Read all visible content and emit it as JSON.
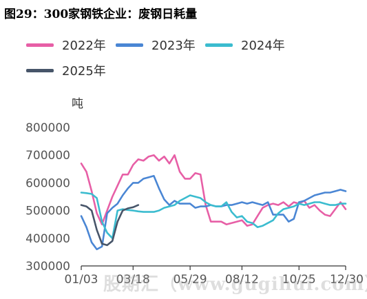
{
  "title": "图29：300家钢铁企业：废钢日耗量",
  "watermark": "股期汇（www.gugihui.com）",
  "chart_data": {
    "type": "line",
    "ylabel": "吨",
    "ylim": [
      300000,
      800000
    ],
    "yticks": [
      300000,
      400000,
      500000,
      600000,
      700000,
      800000
    ],
    "ytick_labels": [
      "300000",
      "400000",
      "500000",
      "600000",
      "700000",
      "800000"
    ],
    "xlim": [
      0,
      51
    ],
    "xticks": [
      0,
      10,
      21,
      31,
      42,
      51
    ],
    "xtick_labels": [
      "01/03",
      "03/18",
      "05/29",
      "08/12",
      "10/25",
      "12/30"
    ],
    "grid": false,
    "legend_position": "top-left",
    "series": [
      {
        "name": "2022年",
        "color": "#e75fa6",
        "x": [
          0,
          1,
          2,
          3,
          4,
          5,
          6,
          7,
          8,
          9,
          10,
          11,
          12,
          13,
          14,
          15,
          16,
          17,
          18,
          19,
          20,
          21,
          22,
          23,
          24,
          25,
          26,
          27,
          28,
          29,
          30,
          31,
          32,
          33,
          34,
          35,
          36,
          37,
          38,
          39,
          40,
          41,
          42,
          43,
          44,
          45,
          46,
          47,
          48,
          49,
          50,
          51
        ],
        "values": [
          670000,
          640000,
          570000,
          490000,
          450000,
          500000,
          550000,
          590000,
          630000,
          630000,
          665000,
          685000,
          680000,
          695000,
          700000,
          680000,
          695000,
          670000,
          700000,
          640000,
          615000,
          615000,
          635000,
          630000,
          520000,
          460000,
          460000,
          460000,
          450000,
          455000,
          460000,
          465000,
          445000,
          450000,
          480000,
          510000,
          520000,
          525000,
          520000,
          530000,
          515000,
          530000,
          525000,
          535000,
          510000,
          520000,
          500000,
          485000,
          480000,
          505000,
          530000,
          505000
        ]
      },
      {
        "name": "2023年",
        "color": "#4a86d4",
        "x": [
          0,
          1,
          2,
          3,
          4,
          5,
          6,
          7,
          8,
          9,
          10,
          11,
          12,
          13,
          14,
          15,
          16,
          17,
          18,
          19,
          20,
          21,
          22,
          23,
          24,
          25,
          26,
          27,
          28,
          29,
          30,
          31,
          32,
          33,
          34,
          35,
          36,
          37,
          38,
          39,
          40,
          41,
          42,
          43,
          44,
          45,
          46,
          47,
          48,
          49,
          50,
          51
        ],
        "values": [
          480000,
          440000,
          385000,
          360000,
          370000,
          490000,
          510000,
          525000,
          555000,
          580000,
          600000,
          600000,
          615000,
          620000,
          625000,
          580000,
          540000,
          520000,
          535000,
          525000,
          525000,
          525000,
          510000,
          515000,
          515000,
          520000,
          515000,
          515000,
          520000,
          520000,
          525000,
          530000,
          525000,
          530000,
          525000,
          520000,
          530000,
          485000,
          485000,
          485000,
          460000,
          470000,
          530000,
          535000,
          545000,
          555000,
          560000,
          565000,
          565000,
          570000,
          575000,
          570000
        ]
      },
      {
        "name": "2024年",
        "color": "#3bbccf",
        "x": [
          0,
          1,
          2,
          3,
          4,
          5,
          6,
          7,
          8,
          9,
          10,
          11,
          12,
          13,
          14,
          15,
          16,
          17,
          18,
          19,
          20,
          21,
          22,
          23,
          24,
          25,
          26,
          27,
          28,
          29,
          30,
          31,
          32,
          33,
          34,
          35,
          36,
          37,
          38,
          39,
          40,
          41,
          42,
          43,
          44,
          45,
          46,
          47,
          48,
          49,
          50,
          51
        ],
        "values": [
          565000,
          563000,
          560000,
          545000,
          460000,
          420000,
          400000,
          500000,
          505000,
          502000,
          500000,
          497000,
          495000,
          495000,
          495000,
          500000,
          510000,
          515000,
          520000,
          535000,
          545000,
          555000,
          550000,
          545000,
          530000,
          520000,
          515000,
          515000,
          530000,
          495000,
          475000,
          480000,
          460000,
          455000,
          440000,
          445000,
          455000,
          465000,
          490000,
          505000,
          510000,
          515000,
          525000,
          520000,
          525000,
          530000,
          530000,
          525000,
          520000,
          520000,
          525000,
          525000
        ]
      },
      {
        "name": "2025年",
        "color": "#475569",
        "x": [
          0,
          1,
          2,
          3,
          4,
          5,
          6,
          7,
          8,
          9,
          10,
          11
        ],
        "values": [
          520000,
          515000,
          500000,
          430000,
          380000,
          375000,
          390000,
          460000,
          500000,
          508000,
          512000,
          520000
        ]
      }
    ]
  }
}
